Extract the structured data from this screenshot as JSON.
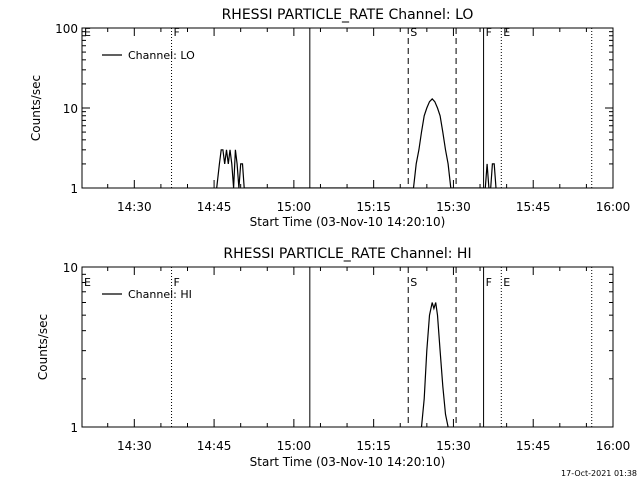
{
  "chart_data": [
    {
      "type": "line",
      "title": "RHESSI PARTICLE_RATE Channel: LO",
      "xlabel": "Start Time (03-Nov-10 14:20:10)",
      "ylabel": "Counts/sec",
      "y_scale": "log",
      "ylim": [
        1,
        100
      ],
      "y_ticks": [
        1,
        10,
        100
      ],
      "y_tick_labels": [
        "1",
        "10",
        "100"
      ],
      "xlim": [
        "14:20:10",
        "16:00:00"
      ],
      "x_ticks": [
        "14:30",
        "14:45",
        "15:00",
        "15:15",
        "15:30",
        "15:45",
        "16:00"
      ],
      "legend_position": "top-left",
      "series": [
        {
          "name": "Channel: LO",
          "x": [
            "14:45:30",
            "14:46:00",
            "14:46:20",
            "14:46:40",
            "14:47:00",
            "14:47:20",
            "14:47:40",
            "14:48:00",
            "14:48:20",
            "14:48:40",
            "14:49:00",
            "14:49:20",
            "14:49:40",
            "14:50:00",
            "14:50:20",
            "14:50:40",
            "14:51:00",
            "15:22:30",
            "15:23:00",
            "15:23:30",
            "15:24:00",
            "15:24:30",
            "15:25:00",
            "15:25:30",
            "15:26:00",
            "15:26:30",
            "15:27:00",
            "15:27:30",
            "15:28:00",
            "15:28:30",
            "15:29:00",
            "15:29:30",
            "15:30:00",
            "15:36:00",
            "15:36:20",
            "15:36:40",
            "15:37:00",
            "15:37:20",
            "15:37:40",
            "15:38:00"
          ],
          "values": [
            1,
            2,
            3,
            3,
            2,
            3,
            2,
            3,
            2,
            1,
            3,
            2,
            1,
            2,
            2,
            1,
            1,
            1,
            2,
            3,
            5,
            8,
            10,
            12,
            13,
            12,
            10,
            8,
            5,
            3,
            2,
            1,
            1,
            1,
            2,
            1,
            1,
            2,
            2,
            1
          ]
        }
      ],
      "annotations": [
        {
          "label": "E",
          "time": "14:20:10",
          "style": "none"
        },
        {
          "label": "F",
          "time": "14:37:00",
          "style": "dotted"
        },
        {
          "label": "",
          "time": "15:03:00",
          "style": "solid"
        },
        {
          "label": "S",
          "time": "15:21:30",
          "style": "dashed"
        },
        {
          "label": "",
          "time": "15:30:30",
          "style": "dashed"
        },
        {
          "label": "F",
          "time": "15:35:40",
          "style": "solid"
        },
        {
          "label": "E",
          "time": "15:39:00",
          "style": "dotted"
        },
        {
          "label": "",
          "time": "15:56:00",
          "style": "dotted"
        }
      ]
    },
    {
      "type": "line",
      "title": "RHESSI PARTICLE_RATE Channel: HI",
      "xlabel": "Start Time (03-Nov-10 14:20:10)",
      "ylabel": "Counts/sec",
      "y_scale": "log",
      "ylim": [
        1,
        10
      ],
      "y_ticks": [
        1,
        10
      ],
      "y_tick_labels": [
        "1",
        "10"
      ],
      "xlim": [
        "14:20:10",
        "16:00:00"
      ],
      "x_ticks": [
        "14:30",
        "14:45",
        "15:00",
        "15:15",
        "15:30",
        "15:45",
        "16:00"
      ],
      "legend_position": "top-left",
      "series": [
        {
          "name": "Channel: HI",
          "x": [
            "15:24:00",
            "15:24:30",
            "15:25:00",
            "15:25:30",
            "15:26:00",
            "15:26:20",
            "15:26:40",
            "15:27:00",
            "15:27:30",
            "15:28:00",
            "15:28:30",
            "15:29:00"
          ],
          "values": [
            1,
            1.5,
            3,
            5,
            6,
            5.5,
            6,
            5,
            3,
            1.8,
            1.2,
            1
          ]
        }
      ],
      "annotations": [
        {
          "label": "E",
          "time": "14:20:10",
          "style": "none"
        },
        {
          "label": "F",
          "time": "14:37:00",
          "style": "dotted"
        },
        {
          "label": "",
          "time": "15:03:00",
          "style": "solid"
        },
        {
          "label": "S",
          "time": "15:21:30",
          "style": "dashed"
        },
        {
          "label": "",
          "time": "15:30:30",
          "style": "dashed"
        },
        {
          "label": "F",
          "time": "15:35:40",
          "style": "solid"
        },
        {
          "label": "E",
          "time": "15:39:00",
          "style": "dotted"
        },
        {
          "label": "",
          "time": "15:56:00",
          "style": "dotted"
        }
      ]
    }
  ],
  "footer": {
    "timestamp": "17-Oct-2021 01:38"
  }
}
